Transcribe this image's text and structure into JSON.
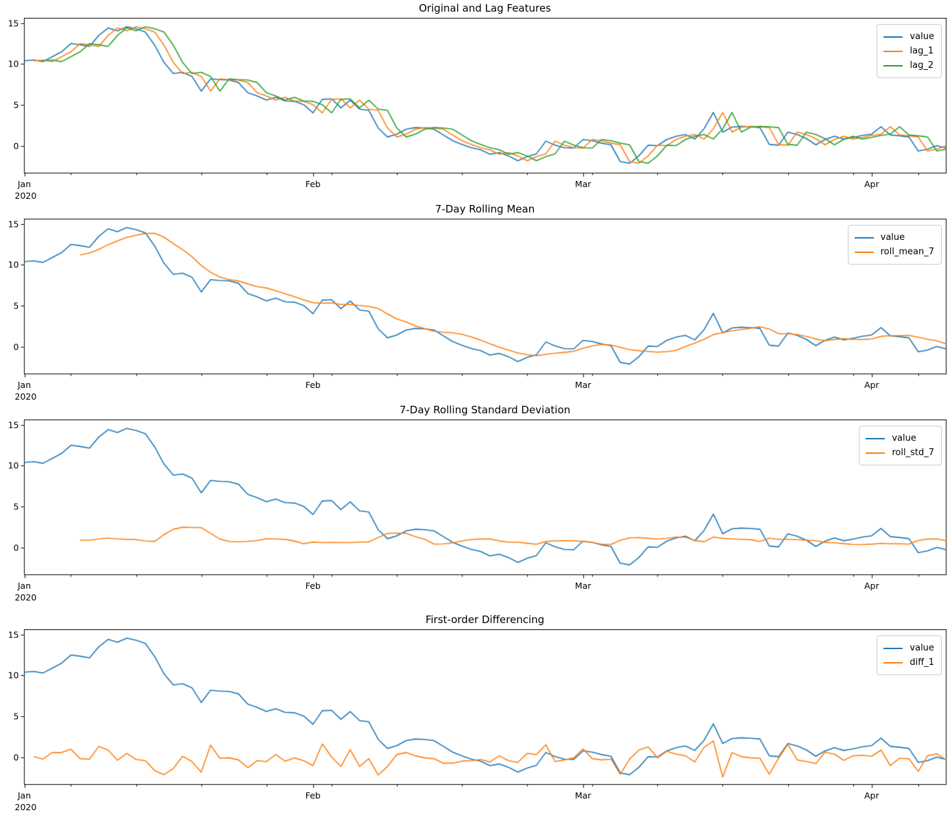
{
  "figure": {
    "kind": "matplotlib-style time series figure",
    "background": "#ffffff",
    "n_subplots": 4
  },
  "data": {
    "date_start": "2020-01-01",
    "date_end": "2020-04-09",
    "frequency": "daily",
    "n_points": 100,
    "value": [
      10.4,
      10.5,
      10.3,
      10.9,
      11.5,
      12.5,
      12.35,
      12.15,
      13.5,
      14.4,
      14.05,
      14.55,
      14.3,
      13.9,
      12.3,
      10.2,
      8.85,
      9.0,
      8.5,
      6.7,
      8.2,
      8.1,
      8.05,
      7.75,
      6.5,
      6.1,
      5.6,
      5.95,
      5.5,
      5.45,
      5.05,
      4.05,
      5.7,
      5.75,
      4.65,
      5.6,
      4.5,
      4.35,
      2.2,
      1.1,
      1.45,
      2.05,
      2.25,
      2.2,
      2.05,
      1.35,
      0.65,
      0.2,
      -0.2,
      -0.45,
      -1.0,
      -0.8,
      -1.2,
      -1.8,
      -1.3,
      -0.95,
      0.6,
      0.1,
      -0.2,
      -0.25,
      0.8,
      0.65,
      0.35,
      0.15,
      -1.9,
      -2.1,
      -1.2,
      0.1,
      0.05,
      0.8,
      1.2,
      1.4,
      0.85,
      2.1,
      4.1,
      1.7,
      2.3,
      2.4,
      2.35,
      2.25,
      0.2,
      0.1,
      1.7,
      1.4,
      0.9,
      0.15,
      0.8,
      1.2,
      0.85,
      1.05,
      1.3,
      1.45,
      2.35,
      1.35,
      1.25,
      1.1,
      -0.6,
      -0.4,
      0.05,
      -0.25
    ]
  },
  "chart_data": [
    {
      "type": "line",
      "title": "Original and Lag Features",
      "series": [
        {
          "name": "value",
          "color": "#1f77b4",
          "transform": "identity"
        },
        {
          "name": "lag_1",
          "color": "#ff7f0e",
          "transform": "shift(1)"
        },
        {
          "name": "lag_2",
          "color": "#2ca02c",
          "transform": "shift(2)"
        }
      ],
      "legend": {
        "position": "upper right",
        "entries": [
          "value",
          "lag_1",
          "lag_2"
        ]
      },
      "yticks": [
        0,
        5,
        10,
        15
      ],
      "ylim": [
        -3.3,
        15.6
      ],
      "grid": false
    },
    {
      "type": "line",
      "title": "7-Day Rolling Mean",
      "series": [
        {
          "name": "value",
          "color": "#1f77b4",
          "transform": "identity"
        },
        {
          "name": "roll_mean_7",
          "color": "#ff7f0e",
          "transform": "rolling_mean(7)"
        }
      ],
      "legend": {
        "position": "upper right",
        "entries": [
          "value",
          "roll_mean_7"
        ]
      },
      "yticks": [
        0,
        5,
        10,
        15
      ],
      "ylim": [
        -3.3,
        15.6
      ],
      "grid": false
    },
    {
      "type": "line",
      "title": "7-Day Rolling Standard Deviation",
      "series": [
        {
          "name": "value",
          "color": "#1f77b4",
          "transform": "identity"
        },
        {
          "name": "roll_std_7",
          "color": "#ff7f0e",
          "transform": "rolling_std(7)"
        }
      ],
      "legend": {
        "position": "upper right",
        "entries": [
          "value",
          "roll_std_7"
        ]
      },
      "yticks": [
        0,
        5,
        10,
        15
      ],
      "ylim": [
        -3.3,
        15.6
      ],
      "grid": false
    },
    {
      "type": "line",
      "title": "First-order Differencing",
      "series": [
        {
          "name": "value",
          "color": "#1f77b4",
          "transform": "identity"
        },
        {
          "name": "diff_1",
          "color": "#ff7f0e",
          "transform": "diff(1)"
        }
      ],
      "legend": {
        "position": "upper right",
        "entries": [
          "value",
          "diff_1"
        ]
      },
      "yticks": [
        0,
        5,
        10,
        15
      ],
      "ylim": [
        -3.3,
        15.6
      ],
      "grid": false
    }
  ],
  "x_axis": {
    "major_tick_days": [
      0,
      31,
      60,
      91
    ],
    "major_tick_labels": [
      "Jan",
      "Feb",
      "Mar",
      "Apr"
    ],
    "minor_tick_days": [
      5,
      12,
      19,
      26,
      33,
      40,
      47,
      54,
      61,
      68,
      75,
      82,
      89,
      96
    ],
    "year_label": "2020"
  }
}
